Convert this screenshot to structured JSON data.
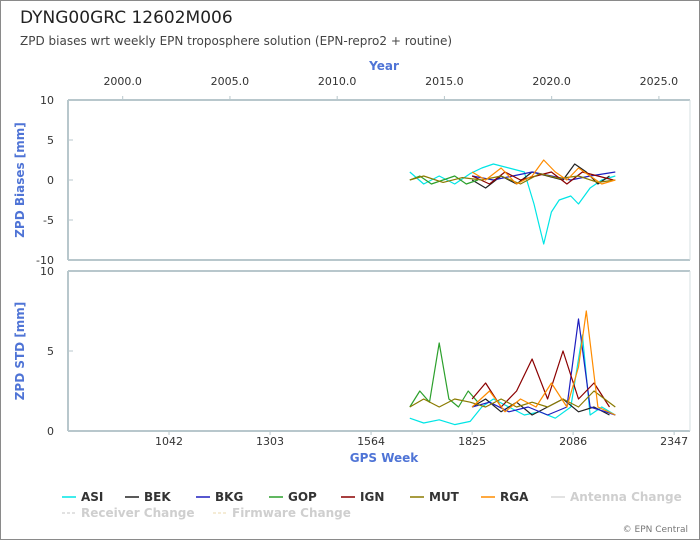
{
  "header": {
    "title": "DYNG00GRC 12602M006",
    "subtitle": "ZPD biases wrt weekly EPN troposphere solution (EPN-repro2 + routine)"
  },
  "footer": {
    "copyright": "© EPN Central"
  },
  "chart_data": [
    {
      "type": "line",
      "ylabel": "ZPD Biases [mm]",
      "top_xlabel": "Year",
      "top_ticks": [
        "2000.0",
        "2005.0",
        "2010.0",
        "2015.0",
        "2020.0",
        "2025.0"
      ],
      "top_tick_values": [
        2000,
        2005,
        2010,
        2015,
        2020,
        2025
      ],
      "xlim_year": [
        1997.45,
        2026.45
      ],
      "ylim": [
        -10,
        10
      ],
      "yticks": [
        -10,
        -5,
        0,
        5,
        10
      ],
      "series": [
        {
          "name": "ASI",
          "color": "#00e5e5",
          "x": [
            1664,
            1700,
            1740,
            1780,
            1820,
            1850,
            1880,
            1920,
            1960,
            1985,
            2000,
            2010,
            2030,
            2050,
            2080,
            2100,
            2130,
            2160,
            2195
          ],
          "values": [
            1.0,
            -0.5,
            0.5,
            -0.5,
            0.8,
            1.5,
            2.0,
            1.5,
            1.0,
            -3.0,
            -6.0,
            -8.0,
            -4.0,
            -2.5,
            -2.0,
            -3.0,
            -1.0,
            0.0,
            0.5
          ]
        },
        {
          "name": "BEK",
          "color": "#222222",
          "x": [
            1825,
            1860,
            1900,
            1940,
            1980,
            2020,
            2060,
            2090,
            2120,
            2150,
            2180
          ],
          "values": [
            0.0,
            -1.0,
            0.5,
            -0.5,
            1.0,
            0.5,
            0.0,
            2.0,
            1.0,
            -0.5,
            0.5
          ]
        },
        {
          "name": "BKG",
          "color": "#1f1fbf",
          "x": [
            1825,
            1880,
            1930,
            1980,
            2030,
            2080,
            2130,
            2195
          ],
          "values": [
            0.5,
            0.0,
            0.5,
            1.0,
            0.5,
            0.0,
            0.5,
            1.0
          ]
        },
        {
          "name": "GOP",
          "color": "#2ca02c",
          "x": [
            1664,
            1690,
            1720,
            1750,
            1780,
            1810,
            1840
          ],
          "values": [
            0.0,
            0.5,
            -0.5,
            0.0,
            0.5,
            -0.5,
            0.0
          ]
        },
        {
          "name": "IGN",
          "color": "#8b0000",
          "x": [
            1825,
            1870,
            1910,
            1950,
            1990,
            2030,
            2070,
            2110,
            2150,
            2190
          ],
          "values": [
            0.5,
            -0.5,
            1.0,
            0.0,
            0.5,
            1.0,
            -0.5,
            1.0,
            0.5,
            0.0
          ]
        },
        {
          "name": "MUT",
          "color": "#8a7a00",
          "x": [
            1664,
            1700,
            1750,
            1800,
            1850,
            1900,
            1950,
            2000,
            2050,
            2100,
            2150,
            2195
          ],
          "values": [
            0.0,
            0.5,
            -0.3,
            0.3,
            0.0,
            0.5,
            -0.5,
            0.8,
            0.2,
            0.5,
            -0.3,
            0.0
          ]
        },
        {
          "name": "RGA",
          "color": "#ff8c00",
          "x": [
            1825,
            1860,
            1900,
            1940,
            1980,
            2010,
            2040,
            2070,
            2100,
            2130,
            2160,
            2195
          ],
          "values": [
            1.0,
            0.0,
            1.5,
            -0.5,
            0.5,
            2.5,
            1.0,
            0.0,
            1.5,
            0.5,
            -0.5,
            0.0
          ]
        }
      ]
    },
    {
      "type": "line",
      "ylabel": "ZPD STD [mm]",
      "xlabel": "GPS Week",
      "xticks": [
        1042,
        1303,
        1564,
        1825,
        2086,
        2347
      ],
      "xlim": [
        781,
        2388
      ],
      "ylim": [
        0,
        10
      ],
      "yticks": [
        0,
        5,
        10
      ],
      "series": [
        {
          "name": "ASI",
          "color": "#00e5e5",
          "x": [
            1664,
            1700,
            1740,
            1780,
            1820,
            1850,
            1880,
            1920,
            1960,
            2000,
            2040,
            2080,
            2110,
            2130,
            2160,
            2195
          ],
          "values": [
            0.8,
            0.5,
            0.7,
            0.4,
            0.6,
            1.5,
            2.0,
            1.5,
            1.0,
            1.2,
            0.8,
            1.5,
            6.0,
            1.0,
            1.5,
            1.0
          ]
        },
        {
          "name": "BEK",
          "color": "#222222",
          "x": [
            1825,
            1860,
            1900,
            1940,
            1980,
            2020,
            2060,
            2100,
            2140,
            2180
          ],
          "values": [
            1.5,
            2.0,
            1.2,
            1.8,
            1.0,
            1.5,
            2.0,
            1.2,
            1.5,
            1.0
          ]
        },
        {
          "name": "BKG",
          "color": "#1f1fbf",
          "x": [
            1825,
            1870,
            1920,
            1970,
            2020,
            2070,
            2100,
            2130,
            2170,
            2195
          ],
          "values": [
            1.5,
            1.8,
            1.2,
            1.5,
            1.0,
            1.5,
            7.0,
            1.5,
            1.2,
            1.0
          ]
        },
        {
          "name": "GOP",
          "color": "#2ca02c",
          "x": [
            1664,
            1690,
            1715,
            1740,
            1765,
            1790,
            1815,
            1840
          ],
          "values": [
            1.5,
            2.5,
            1.8,
            5.5,
            2.0,
            1.5,
            2.5,
            1.8
          ]
        },
        {
          "name": "IGN",
          "color": "#8b0000",
          "x": [
            1825,
            1860,
            1900,
            1940,
            1980,
            2020,
            2060,
            2100,
            2140,
            2180
          ],
          "values": [
            2.0,
            3.0,
            1.5,
            2.5,
            4.5,
            2.0,
            5.0,
            2.0,
            3.0,
            1.5
          ]
        },
        {
          "name": "MUT",
          "color": "#8a7a00",
          "x": [
            1664,
            1700,
            1740,
            1780,
            1820,
            1860,
            1900,
            1940,
            1980,
            2020,
            2060,
            2100,
            2140,
            2195
          ],
          "values": [
            1.5,
            2.0,
            1.5,
            2.0,
            1.8,
            1.5,
            2.0,
            1.5,
            1.8,
            1.5,
            2.0,
            1.5,
            2.5,
            1.5
          ]
        },
        {
          "name": "RGA",
          "color": "#ff8c00",
          "x": [
            1825,
            1870,
            1910,
            1950,
            1990,
            2030,
            2070,
            2100,
            2120,
            2150,
            2195
          ],
          "values": [
            1.5,
            2.5,
            1.2,
            2.0,
            1.5,
            3.0,
            1.5,
            4.0,
            7.5,
            1.5,
            1.0
          ]
        }
      ]
    }
  ],
  "legend": [
    {
      "label": "ASI",
      "color": "#00e5e5",
      "style": "solid"
    },
    {
      "label": "BEK",
      "color": "#222222",
      "style": "solid"
    },
    {
      "label": "BKG",
      "color": "#1f1fbf",
      "style": "solid"
    },
    {
      "label": "GOP",
      "color": "#2ca02c",
      "style": "solid"
    },
    {
      "label": "IGN",
      "color": "#8b0000",
      "style": "solid"
    },
    {
      "label": "MUT",
      "color": "#8a7a00",
      "style": "solid"
    },
    {
      "label": "RGA",
      "color": "#ff8c00",
      "style": "solid"
    },
    {
      "label": "Antenna Change",
      "color": "#d9d9d9",
      "style": "solid",
      "faded": true
    },
    {
      "label": "Receiver Change",
      "color": "#d9d9d9",
      "style": "dashed",
      "faded": true
    },
    {
      "label": "Firmware Change",
      "color": "#f2e6c8",
      "style": "dashed",
      "faded": true
    }
  ]
}
